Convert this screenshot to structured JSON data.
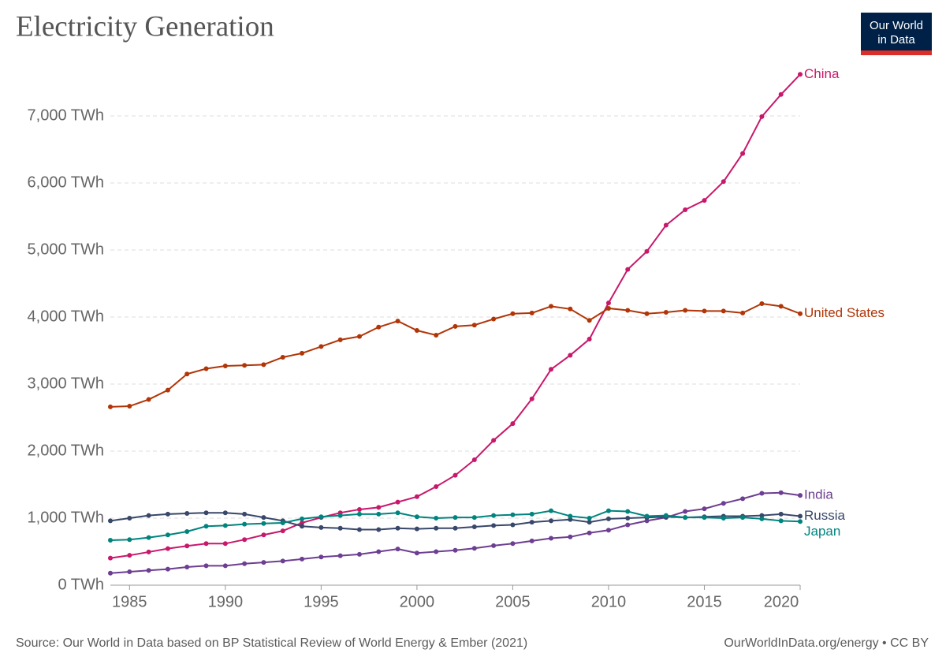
{
  "chart_data": {
    "type": "line",
    "title": "Electricity Generation",
    "logo_text": [
      "Our World",
      "in Data"
    ],
    "source": "Source: Our World in Data based on BP Statistical Review of World Energy & Ember (2021)",
    "license_note": "OurWorldInData.org/energy • CC BY",
    "x": [
      1984,
      1985,
      1986,
      1987,
      1988,
      1989,
      1990,
      1991,
      1992,
      1993,
      1994,
      1995,
      1996,
      1997,
      1998,
      1999,
      2000,
      2001,
      2002,
      2003,
      2004,
      2005,
      2006,
      2007,
      2008,
      2009,
      2010,
      2011,
      2012,
      2013,
      2014,
      2015,
      2016,
      2017,
      2018,
      2019,
      2020
    ],
    "xlim": [
      1984,
      2020
    ],
    "xticks": [
      1985,
      1990,
      1995,
      2000,
      2005,
      2010,
      2015,
      2020
    ],
    "ylim": [
      0,
      7600
    ],
    "yticks": [
      {
        "value": 0,
        "label": "0 TWh"
      },
      {
        "value": 1000,
        "label": "1,000 TWh"
      },
      {
        "value": 2000,
        "label": "2,000 TWh"
      },
      {
        "value": 3000,
        "label": "3,000 TWh"
      },
      {
        "value": 4000,
        "label": "4,000 TWh"
      },
      {
        "value": 5000,
        "label": "5,000 TWh"
      },
      {
        "value": 6000,
        "label": "6,000 TWh"
      },
      {
        "value": 7000,
        "label": "7,000 TWh"
      }
    ],
    "grid": true,
    "series": [
      {
        "name": "China",
        "color": "#c8186b",
        "values": [
          405,
          445,
          495,
          545,
          585,
          620,
          620,
          680,
          750,
          810,
          930,
          1010,
          1080,
          1130,
          1160,
          1240,
          1320,
          1470,
          1640,
          1870,
          2160,
          2410,
          2780,
          3220,
          3430,
          3670,
          4210,
          4710,
          4980,
          5370,
          5600,
          5740,
          6020,
          6440,
          6990,
          7320,
          7620
        ]
      },
      {
        "name": "United States",
        "color": "#b13507",
        "values": [
          2660,
          2670,
          2770,
          2910,
          3150,
          3230,
          3270,
          3280,
          3290,
          3400,
          3460,
          3560,
          3660,
          3710,
          3850,
          3940,
          3800,
          3730,
          3860,
          3880,
          3970,
          4050,
          4060,
          4160,
          4120,
          3950,
          4130,
          4100,
          4050,
          4070,
          4100,
          4090,
          4090,
          4060,
          4200,
          4160,
          4050
        ]
      },
      {
        "name": "India",
        "color": "#6d3e91",
        "values": [
          180,
          200,
          220,
          240,
          270,
          290,
          290,
          320,
          340,
          360,
          390,
          420,
          440,
          460,
          500,
          540,
          480,
          500,
          520,
          550,
          590,
          620,
          660,
          700,
          720,
          780,
          820,
          900,
          960,
          1010,
          1100,
          1140,
          1220,
          1290,
          1370,
          1380,
          1340
        ]
      },
      {
        "name": "Russia",
        "color": "#38476a",
        "values": [
          960,
          1000,
          1040,
          1060,
          1070,
          1080,
          1080,
          1060,
          1010,
          960,
          880,
          860,
          850,
          830,
          830,
          850,
          840,
          850,
          850,
          870,
          890,
          900,
          940,
          960,
          980,
          940,
          990,
          1000,
          1010,
          1020,
          1010,
          1020,
          1030,
          1030,
          1040,
          1060,
          1030
        ]
      },
      {
        "name": "Japan",
        "color": "#00847e",
        "values": [
          670,
          680,
          710,
          750,
          800,
          880,
          890,
          910,
          920,
          930,
          990,
          1020,
          1040,
          1060,
          1060,
          1080,
          1020,
          1000,
          1010,
          1010,
          1040,
          1050,
          1060,
          1110,
          1030,
          1000,
          1110,
          1100,
          1030,
          1040,
          1010,
          1010,
          1000,
          1010,
          990,
          960,
          950
        ]
      }
    ]
  }
}
